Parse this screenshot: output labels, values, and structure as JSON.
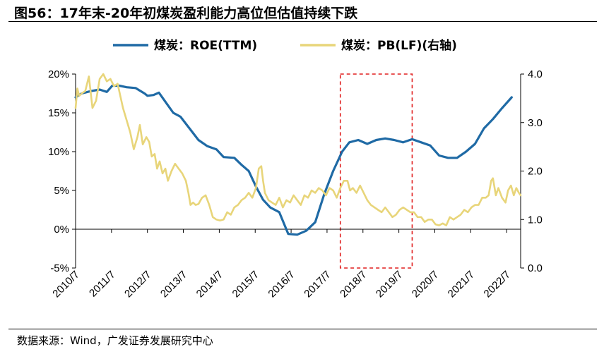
{
  "header": {
    "title": "图56：17年末-20年初煤炭盈利能力高位但估值持续下跌"
  },
  "footer": {
    "source": "数据来源：Wind，广发证券发展研究中心"
  },
  "chart_data": {
    "type": "line",
    "x_ticks": [
      "2010/7",
      "2011/7",
      "2012/7",
      "2013/7",
      "2014/7",
      "2015/7",
      "2016/7",
      "2017/7",
      "2018/7",
      "2019/7",
      "2020/7",
      "2021/7",
      "2022/7"
    ],
    "y_left": {
      "ticks": [
        "20%",
        "15%",
        "10%",
        "5%",
        "0%",
        "-5%"
      ],
      "ylim": [
        -5,
        20
      ]
    },
    "y_right": {
      "ticks": [
        "4.0",
        "3.0",
        "2.0",
        "1.0",
        "0.0"
      ],
      "ylim": [
        0,
        4
      ]
    },
    "legend_position": "top-center",
    "grid": false,
    "highlight_box": {
      "x_start": 2017.95,
      "x_end": 2019.95,
      "y_top": 20,
      "y_bottom": -5
    },
    "series": [
      {
        "name": "煤炭：ROE(TTM)",
        "axis": "left",
        "color": "#1f6aa5",
        "points": [
          [
            2010.58,
            17.0
          ],
          [
            2010.75,
            17.5
          ],
          [
            2011.0,
            17.8
          ],
          [
            2011.25,
            18.0
          ],
          [
            2011.45,
            17.7
          ],
          [
            2011.6,
            18.5
          ],
          [
            2011.8,
            18.5
          ],
          [
            2012.0,
            18.3
          ],
          [
            2012.25,
            18.2
          ],
          [
            2012.5,
            17.5
          ],
          [
            2012.58,
            17.2
          ],
          [
            2012.75,
            17.3
          ],
          [
            2012.9,
            17.6
          ],
          [
            2013.1,
            16.3
          ],
          [
            2013.3,
            15.0
          ],
          [
            2013.5,
            14.5
          ],
          [
            2013.75,
            13.0
          ],
          [
            2014.0,
            11.5
          ],
          [
            2014.25,
            10.7
          ],
          [
            2014.5,
            10.3
          ],
          [
            2014.7,
            9.3
          ],
          [
            2015.0,
            9.2
          ],
          [
            2015.2,
            8.3
          ],
          [
            2015.4,
            7.5
          ],
          [
            2015.6,
            5.5
          ],
          [
            2015.8,
            3.8
          ],
          [
            2016.0,
            2.8
          ],
          [
            2016.25,
            2.2
          ],
          [
            2016.5,
            -0.6
          ],
          [
            2016.75,
            -0.7
          ],
          [
            2017.0,
            -0.2
          ],
          [
            2017.25,
            0.9
          ],
          [
            2017.5,
            4.5
          ],
          [
            2017.75,
            7.5
          ],
          [
            2018.0,
            10.0
          ],
          [
            2018.2,
            11.2
          ],
          [
            2018.45,
            11.5
          ],
          [
            2018.7,
            11.0
          ],
          [
            2018.95,
            11.5
          ],
          [
            2019.2,
            11.7
          ],
          [
            2019.45,
            11.5
          ],
          [
            2019.7,
            11.2
          ],
          [
            2019.95,
            11.6
          ],
          [
            2020.2,
            11.2
          ],
          [
            2020.45,
            10.8
          ],
          [
            2020.7,
            9.5
          ],
          [
            2020.95,
            9.2
          ],
          [
            2021.2,
            9.2
          ],
          [
            2021.45,
            10.0
          ],
          [
            2021.7,
            11.0
          ],
          [
            2021.95,
            13.0
          ],
          [
            2022.2,
            14.2
          ],
          [
            2022.45,
            15.6
          ],
          [
            2022.72,
            17.0
          ]
        ]
      },
      {
        "name": "煤炭：PB(LF)(右轴)",
        "axis": "right",
        "color": "#e8d57a",
        "points": [
          [
            2010.58,
            3.3
          ],
          [
            2010.63,
            3.7
          ],
          [
            2010.68,
            3.55
          ],
          [
            2010.75,
            3.6
          ],
          [
            2010.85,
            3.65
          ],
          [
            2010.95,
            3.95
          ],
          [
            2011.05,
            3.3
          ],
          [
            2011.15,
            3.45
          ],
          [
            2011.25,
            3.9
          ],
          [
            2011.35,
            4.0
          ],
          [
            2011.45,
            3.85
          ],
          [
            2011.55,
            3.9
          ],
          [
            2011.65,
            3.75
          ],
          [
            2011.75,
            3.8
          ],
          [
            2011.9,
            3.3
          ],
          [
            2012.0,
            3.05
          ],
          [
            2012.1,
            2.8
          ],
          [
            2012.2,
            2.45
          ],
          [
            2012.3,
            2.7
          ],
          [
            2012.37,
            2.95
          ],
          [
            2012.45,
            2.55
          ],
          [
            2012.55,
            2.7
          ],
          [
            2012.63,
            2.6
          ],
          [
            2012.7,
            2.3
          ],
          [
            2012.78,
            2.35
          ],
          [
            2012.85,
            2.05
          ],
          [
            2012.92,
            2.2
          ],
          [
            2013.0,
            1.95
          ],
          [
            2013.08,
            2.05
          ],
          [
            2013.15,
            1.8
          ],
          [
            2013.25,
            2.0
          ],
          [
            2013.35,
            2.15
          ],
          [
            2013.45,
            2.05
          ],
          [
            2013.55,
            1.95
          ],
          [
            2013.65,
            1.8
          ],
          [
            2013.72,
            1.55
          ],
          [
            2013.78,
            1.3
          ],
          [
            2013.85,
            1.35
          ],
          [
            2013.92,
            1.3
          ],
          [
            2014.0,
            1.32
          ],
          [
            2014.1,
            1.45
          ],
          [
            2014.2,
            1.5
          ],
          [
            2014.3,
            1.3
          ],
          [
            2014.4,
            1.05
          ],
          [
            2014.5,
            1.0
          ],
          [
            2014.6,
            0.98
          ],
          [
            2014.7,
            1.0
          ],
          [
            2014.8,
            1.15
          ],
          [
            2014.9,
            1.1
          ],
          [
            2015.0,
            1.25
          ],
          [
            2015.1,
            1.3
          ],
          [
            2015.2,
            1.4
          ],
          [
            2015.3,
            1.45
          ],
          [
            2015.4,
            1.55
          ],
          [
            2015.5,
            1.45
          ],
          [
            2015.6,
            1.65
          ],
          [
            2015.68,
            2.05
          ],
          [
            2015.75,
            2.1
          ],
          [
            2015.8,
            1.8
          ],
          [
            2015.85,
            1.55
          ],
          [
            2015.95,
            1.4
          ],
          [
            2016.05,
            1.35
          ],
          [
            2016.15,
            1.3
          ],
          [
            2016.25,
            1.45
          ],
          [
            2016.35,
            1.25
          ],
          [
            2016.45,
            1.4
          ],
          [
            2016.55,
            1.35
          ],
          [
            2016.65,
            1.5
          ],
          [
            2016.75,
            1.4
          ],
          [
            2016.85,
            1.3
          ],
          [
            2016.95,
            1.5
          ],
          [
            2017.05,
            1.45
          ],
          [
            2017.15,
            1.6
          ],
          [
            2017.25,
            1.55
          ],
          [
            2017.35,
            1.65
          ],
          [
            2017.45,
            1.6
          ],
          [
            2017.55,
            1.5
          ],
          [
            2017.65,
            1.65
          ],
          [
            2017.75,
            1.6
          ],
          [
            2017.85,
            1.45
          ],
          [
            2017.95,
            1.65
          ],
          [
            2018.05,
            1.8
          ],
          [
            2018.15,
            1.8
          ],
          [
            2018.22,
            1.6
          ],
          [
            2018.3,
            1.65
          ],
          [
            2018.4,
            1.55
          ],
          [
            2018.5,
            1.7
          ],
          [
            2018.6,
            1.55
          ],
          [
            2018.7,
            1.4
          ],
          [
            2018.8,
            1.3
          ],
          [
            2018.9,
            1.25
          ],
          [
            2019.0,
            1.2
          ],
          [
            2019.1,
            1.15
          ],
          [
            2019.2,
            1.25
          ],
          [
            2019.3,
            1.15
          ],
          [
            2019.4,
            1.05
          ],
          [
            2019.5,
            1.1
          ],
          [
            2019.6,
            1.2
          ],
          [
            2019.7,
            1.25
          ],
          [
            2019.8,
            1.2
          ],
          [
            2019.9,
            1.15
          ],
          [
            2020.0,
            1.15
          ],
          [
            2020.1,
            1.05
          ],
          [
            2020.2,
            1.05
          ],
          [
            2020.3,
            0.95
          ],
          [
            2020.4,
            1.0
          ],
          [
            2020.5,
            1.0
          ],
          [
            2020.6,
            0.9
          ],
          [
            2020.7,
            0.88
          ],
          [
            2020.8,
            0.92
          ],
          [
            2020.9,
            0.88
          ],
          [
            2021.0,
            1.05
          ],
          [
            2021.1,
            1.0
          ],
          [
            2021.2,
            1.05
          ],
          [
            2021.3,
            1.1
          ],
          [
            2021.4,
            1.2
          ],
          [
            2021.5,
            1.15
          ],
          [
            2021.6,
            1.25
          ],
          [
            2021.7,
            1.3
          ],
          [
            2021.8,
            1.3
          ],
          [
            2021.9,
            1.45
          ],
          [
            2022.0,
            1.45
          ],
          [
            2022.08,
            1.5
          ],
          [
            2022.15,
            1.8
          ],
          [
            2022.2,
            1.85
          ],
          [
            2022.28,
            1.5
          ],
          [
            2022.35,
            1.65
          ],
          [
            2022.45,
            1.45
          ],
          [
            2022.55,
            1.35
          ],
          [
            2022.62,
            1.6
          ],
          [
            2022.7,
            1.7
          ],
          [
            2022.78,
            1.5
          ],
          [
            2022.85,
            1.65
          ],
          [
            2022.92,
            1.55
          ],
          [
            2022.97,
            1.5
          ]
        ]
      }
    ]
  }
}
